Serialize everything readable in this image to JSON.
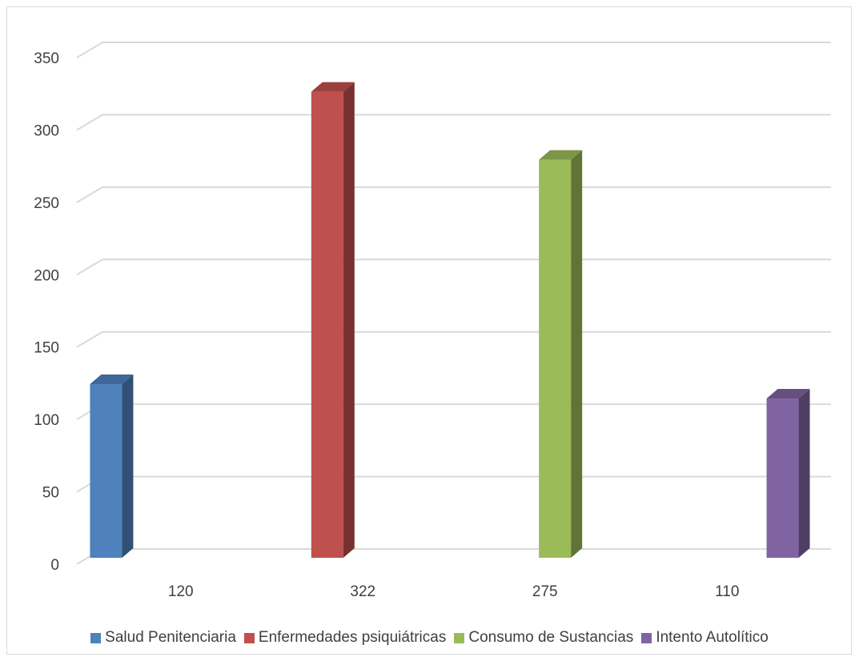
{
  "chart_data": {
    "type": "bar",
    "style": "3d-clustered-column",
    "categories": [
      "120",
      "322",
      "275",
      "110"
    ],
    "series": [
      {
        "name": "Salud Penitenciaria",
        "color": "#4f81bd",
        "values": [
          120,
          null,
          null,
          null
        ]
      },
      {
        "name": "Enfermedades psiquiátricas",
        "color": "#c0504d",
        "values": [
          null,
          322,
          null,
          null
        ]
      },
      {
        "name": "Consumo de Sustancias",
        "color": "#9bbb59",
        "values": [
          null,
          null,
          275,
          null
        ]
      },
      {
        "name": "Intento Autolítico",
        "color": "#8064a2",
        "values": [
          null,
          null,
          null,
          110
        ]
      }
    ],
    "yticks": [
      0,
      50,
      100,
      150,
      200,
      250,
      300,
      350
    ],
    "ylim": [
      0,
      350
    ],
    "title": "",
    "xlabel": "",
    "ylabel": "",
    "grid": true,
    "legend_position": "bottom"
  }
}
